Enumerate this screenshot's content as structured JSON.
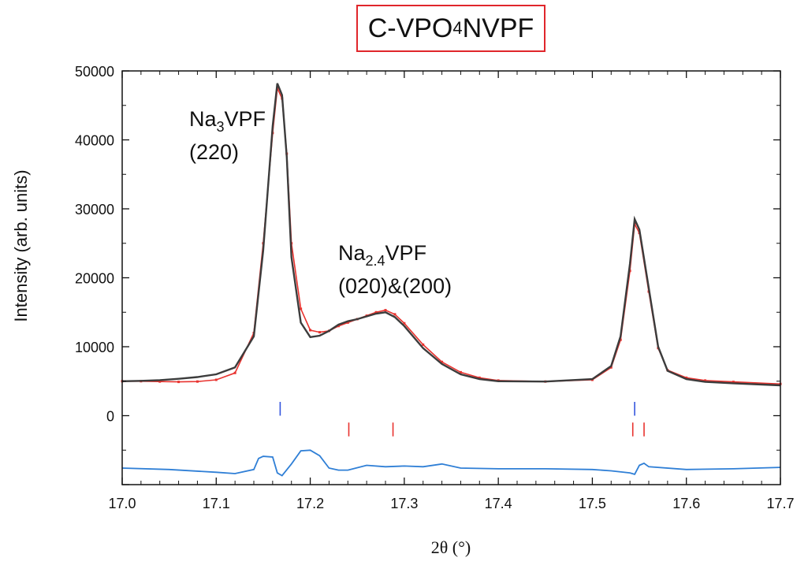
{
  "chart_data": {
    "type": "line",
    "title_main": "C-VPO",
    "title_sub": "4",
    "title_tail": " NVPF",
    "xlabel": "2θ (°)",
    "ylabel": "Intensity (arb. units)",
    "xlim": [
      17.0,
      17.7
    ],
    "ylim": [
      -10000,
      50000
    ],
    "x_ticks": [
      "17.0",
      "17.1",
      "17.2",
      "17.3",
      "17.4",
      "17.5",
      "17.6",
      "17.7"
    ],
    "y_ticks": [
      "0",
      "10000",
      "20000",
      "30000",
      "40000",
      "50000"
    ],
    "series": [
      {
        "role": "observed",
        "color": "#e8322e",
        "x": [
          17.0,
          17.02,
          17.04,
          17.06,
          17.08,
          17.1,
          17.12,
          17.14,
          17.15,
          17.16,
          17.165,
          17.17,
          17.175,
          17.18,
          17.19,
          17.2,
          17.21,
          17.22,
          17.23,
          17.24,
          17.25,
          17.26,
          17.27,
          17.28,
          17.29,
          17.3,
          17.32,
          17.34,
          17.36,
          17.38,
          17.4,
          17.45,
          17.5,
          17.52,
          17.53,
          17.54,
          17.545,
          17.55,
          17.56,
          17.57,
          17.58,
          17.6,
          17.62,
          17.65,
          17.7
        ],
        "y": [
          5000,
          5000,
          4950,
          4900,
          4950,
          5200,
          6200,
          12000,
          25000,
          41000,
          47500,
          46000,
          38000,
          25000,
          15500,
          12400,
          12100,
          12300,
          13000,
          13500,
          14000,
          14500,
          15000,
          15300,
          14700,
          13400,
          10300,
          7800,
          6300,
          5500,
          5100,
          4950,
          5200,
          7000,
          11000,
          21000,
          27800,
          26500,
          18000,
          9800,
          6600,
          5500,
          5100,
          4900,
          4600
        ]
      },
      {
        "role": "calculated",
        "color": "#3c3c3c",
        "x": [
          17.0,
          17.02,
          17.04,
          17.06,
          17.08,
          17.1,
          17.12,
          17.14,
          17.15,
          17.16,
          17.165,
          17.17,
          17.175,
          17.18,
          17.19,
          17.2,
          17.21,
          17.22,
          17.23,
          17.24,
          17.25,
          17.26,
          17.27,
          17.28,
          17.29,
          17.3,
          17.32,
          17.34,
          17.36,
          17.38,
          17.4,
          17.45,
          17.5,
          17.52,
          17.53,
          17.54,
          17.545,
          17.55,
          17.56,
          17.57,
          17.58,
          17.6,
          17.62,
          17.65,
          17.7
        ],
        "y": [
          5000,
          5050,
          5150,
          5350,
          5600,
          6000,
          7000,
          11500,
          24000,
          42000,
          48200,
          46500,
          37500,
          23000,
          13500,
          11400,
          11600,
          12300,
          13200,
          13700,
          14000,
          14400,
          14800,
          15000,
          14300,
          13000,
          9800,
          7500,
          6000,
          5300,
          5000,
          4950,
          5300,
          7200,
          11500,
          22000,
          28500,
          27000,
          18500,
          10000,
          6500,
          5300,
          4900,
          4700,
          4400
        ]
      },
      {
        "role": "difference",
        "color": "#2f7fd6",
        "x": [
          17.0,
          17.05,
          17.1,
          17.12,
          17.14,
          17.145,
          17.15,
          17.16,
          17.165,
          17.17,
          17.18,
          17.19,
          17.2,
          17.21,
          17.22,
          17.23,
          17.24,
          17.26,
          17.28,
          17.3,
          17.32,
          17.34,
          17.36,
          17.4,
          17.45,
          17.5,
          17.52,
          17.54,
          17.545,
          17.55,
          17.555,
          17.56,
          17.6,
          17.65,
          17.7
        ],
        "y": [
          -7600,
          -7800,
          -8200,
          -8400,
          -7800,
          -6200,
          -5900,
          -6000,
          -8300,
          -8700,
          -7000,
          -5100,
          -5000,
          -5800,
          -7600,
          -7900,
          -7900,
          -7200,
          -7400,
          -7300,
          -7400,
          -7000,
          -7600,
          -7700,
          -7700,
          -7800,
          -8000,
          -8300,
          -8500,
          -7200,
          -6900,
          -7400,
          -7800,
          -7700,
          -7500
        ]
      }
    ],
    "reflection_markers": [
      {
        "color": "#3355dd",
        "row": "upper",
        "x": [
          17.168,
          17.545
        ]
      },
      {
        "color": "#e8322e",
        "row": "lower",
        "x": [
          17.241,
          17.288,
          17.543,
          17.555
        ]
      }
    ],
    "annotations": [
      {
        "id": "na3",
        "formula": "Na",
        "sub": "3",
        "tail": "VPF",
        "hkl": "(220)"
      },
      {
        "id": "na24",
        "formula": "Na",
        "sub": "2.4",
        "tail": "VPF",
        "hkl": "(020)&(200)"
      }
    ]
  }
}
